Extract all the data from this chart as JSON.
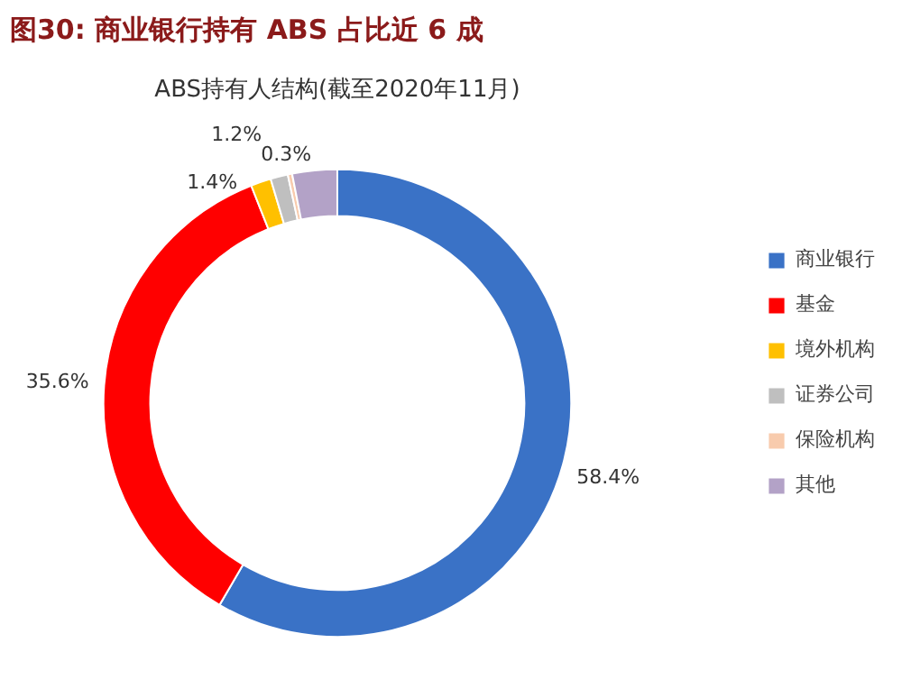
{
  "chart_data": {
    "type": "donut",
    "title": "图30: 商业银行持有 ABS 占比近 6 成",
    "subtitle": "ABS持有人结构(截至2020年11月)",
    "categories": [
      "商业银行",
      "基金",
      "境外机构",
      "证券公司",
      "保险机构",
      "其他"
    ],
    "values": [
      58.4,
      35.6,
      1.4,
      1.2,
      0.3,
      3.1
    ],
    "value_labels": [
      "58.4%",
      "35.6%",
      "1.4%",
      "1.2%",
      "0.3%",
      null
    ],
    "colors": [
      "#3a72c6",
      "#ff0000",
      "#ffc000",
      "#bfbfbf",
      "#f8cbad",
      "#b3a2c7"
    ],
    "legend": "right"
  }
}
